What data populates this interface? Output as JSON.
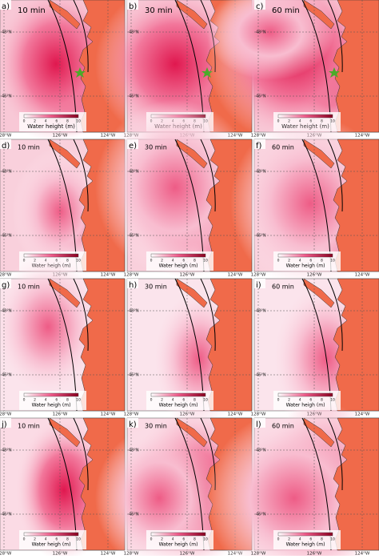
{
  "panels": [
    {
      "label": "a)",
      "time": "10 min",
      "colorbar_label": "Water height (m)"
    },
    {
      "label": "b)",
      "time": "30 min",
      "colorbar_label": "Water height (m)"
    },
    {
      "label": "c)",
      "time": "60 min",
      "colorbar_label": "Water height (m)"
    },
    {
      "label": "d)",
      "time": "10 min",
      "colorbar_label": "Water heigh (m)"
    },
    {
      "label": "e)",
      "time": "30 min",
      "colorbar_label": "Water heigh (m)"
    },
    {
      "label": "f)",
      "time": "60 min",
      "colorbar_label": "Water heigh (m)"
    },
    {
      "label": "g)",
      "time": "10 min",
      "colorbar_label": "Water heigh (m)"
    },
    {
      "label": "h)",
      "time": "30 min",
      "colorbar_label": "Water heigh (m)"
    },
    {
      "label": "i)",
      "time": "60 min",
      "colorbar_label": "Water heigh (m)"
    },
    {
      "label": "j)",
      "time": "10 min",
      "colorbar_label": "Water heigh (m)"
    },
    {
      "label": "k)",
      "time": "30 min",
      "colorbar_label": "Water heigh (m)"
    },
    {
      "label": "l)",
      "time": "60 min",
      "colorbar_label": "Water heigh (m)"
    }
  ],
  "lat_labels": [
    "48°N",
    "46°N"
  ],
  "lon_labels": [
    "128°W",
    "126°W",
    "124°W"
  ],
  "colorbar_ticks": [
    "0",
    "2",
    "4",
    "6",
    "8",
    "10"
  ]
}
